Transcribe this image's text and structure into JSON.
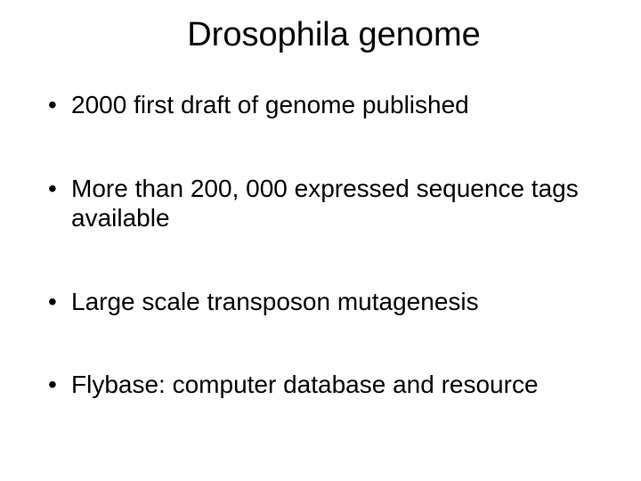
{
  "slide": {
    "title": "Drosophila genome",
    "bullets": [
      "2000 first draft of genome published",
      "More than 200, 000 expressed sequence tags available",
      "Large scale transposon mutagenesis",
      "Flybase: computer database and resource"
    ]
  },
  "style": {
    "background_color": "#ffffff",
    "text_color": "#000000",
    "font_family": "Arial",
    "title_fontsize": 38,
    "body_fontsize": 28,
    "bullet_char": "•",
    "slide_width": 720,
    "slide_height": 540
  }
}
